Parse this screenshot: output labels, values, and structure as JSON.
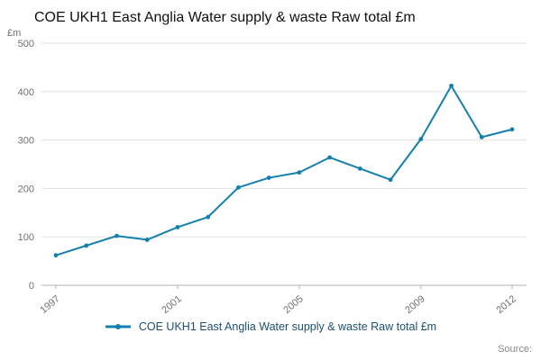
{
  "page": {
    "source_label": "Source:"
  },
  "colors": {
    "line": "#1580b0",
    "grid": "#e3e3e3",
    "axis": "#b3b3b3",
    "tick_text": "#707070",
    "title_text": "#0f0f0f",
    "legend_text": "#1d4f6f",
    "source_text": "#8a8a8a"
  },
  "chart_data": {
    "type": "line",
    "title": "COE UKH1 East Anglia Water supply & waste Raw total £m",
    "xlabel": "",
    "ylabel": "£m",
    "x": [
      1997,
      1998,
      1999,
      2000,
      2001,
      2002,
      2003,
      2004,
      2005,
      2006,
      2007,
      2008,
      2009,
      2010,
      2011,
      2012
    ],
    "values": [
      62,
      82,
      102,
      94,
      120,
      141,
      202,
      222,
      233,
      264,
      241,
      218,
      302,
      412,
      306,
      322
    ],
    "ylim": [
      0,
      500
    ],
    "yticks": [
      0,
      100,
      200,
      300,
      400,
      500
    ],
    "xticks": [
      1997,
      2001,
      2005,
      2009,
      2012
    ],
    "grid": true,
    "line_color": "#1580b0",
    "marker": "circle",
    "legend": {
      "position": "bottom",
      "label": "COE UKH1 East Anglia Water supply & waste Raw total £m"
    }
  }
}
